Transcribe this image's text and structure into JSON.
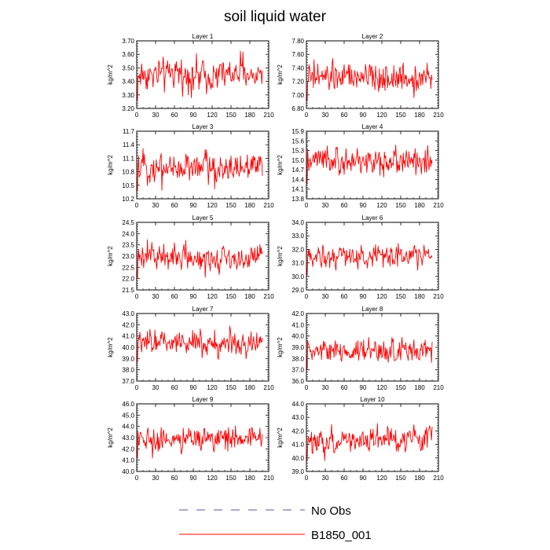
{
  "title": "soil liquid water",
  "legend": [
    {
      "label": "No Obs",
      "color": "#5555aa",
      "style": "dashed"
    },
    {
      "label": "B1850_001",
      "color": "#ff0000",
      "style": "solid"
    }
  ],
  "chart_data": [
    {
      "type": "line",
      "title": "Layer 1",
      "ylabel": "kg/m^2",
      "xlim": [
        0,
        210
      ],
      "ylim": [
        3.2,
        3.7
      ],
      "xticks": [
        "0",
        "30",
        "60",
        "90",
        "120",
        "150",
        "180",
        "210"
      ],
      "yticks": [
        "3.20",
        "3.30",
        "3.40",
        "3.50",
        "3.60",
        "3.70"
      ],
      "series": [
        {
          "name": "B1850_001",
          "n": 200,
          "mean": 3.45,
          "amplitude": 0.1,
          "low_start": true
        }
      ]
    },
    {
      "type": "line",
      "title": "Layer 2",
      "ylabel": "kg/m^2",
      "xlim": [
        0,
        210
      ],
      "ylim": [
        6.8,
        7.8
      ],
      "xticks": [
        "0",
        "30",
        "60",
        "90",
        "120",
        "150",
        "180",
        "210"
      ],
      "yticks": [
        "6.80",
        "7.00",
        "7.20",
        "7.40",
        "7.60",
        "7.80"
      ],
      "series": [
        {
          "name": "B1850_001",
          "n": 200,
          "mean": 7.25,
          "amplitude": 0.18,
          "low_start": true
        }
      ]
    },
    {
      "type": "line",
      "title": "Layer 3",
      "ylabel": "kg/m^2",
      "xlim": [
        0,
        210
      ],
      "ylim": [
        10.2,
        11.7
      ],
      "xticks": [
        "0",
        "30",
        "60",
        "90",
        "120",
        "150",
        "180",
        "210"
      ],
      "yticks": [
        "10.2",
        "10.5",
        "10.8",
        "11.1",
        "11.4",
        "11.7"
      ],
      "series": [
        {
          "name": "B1850_001",
          "n": 200,
          "mean": 10.9,
          "amplitude": 0.28,
          "low_start": true
        }
      ]
    },
    {
      "type": "line",
      "title": "Layer 4",
      "ylabel": "kg/m^2",
      "xlim": [
        0,
        210
      ],
      "ylim": [
        13.8,
        15.9
      ],
      "xticks": [
        "0",
        "30",
        "60",
        "90",
        "120",
        "150",
        "180",
        "210"
      ],
      "yticks": [
        "13.8",
        "14.1",
        "14.4",
        "14.7",
        "15.0",
        "15.3",
        "15.6",
        "15.9"
      ],
      "series": [
        {
          "name": "B1850_001",
          "n": 200,
          "mean": 14.95,
          "amplitude": 0.35,
          "low_start": true
        }
      ]
    },
    {
      "type": "line",
      "title": "Layer 5",
      "ylabel": "kg/m^2",
      "xlim": [
        0,
        210
      ],
      "ylim": [
        21.5,
        24.5
      ],
      "xticks": [
        "0",
        "30",
        "60",
        "90",
        "120",
        "150",
        "180",
        "210"
      ],
      "yticks": [
        "21.5",
        "22.0",
        "22.5",
        "23.0",
        "23.5",
        "24.0",
        "24.5"
      ],
      "series": [
        {
          "name": "B1850_001",
          "n": 200,
          "mean": 22.95,
          "amplitude": 0.5,
          "low_start": true
        }
      ]
    },
    {
      "type": "line",
      "title": "Layer 6",
      "ylabel": "kg/m^2",
      "xlim": [
        0,
        210
      ],
      "ylim": [
        29.0,
        34.0
      ],
      "xticks": [
        "0",
        "30",
        "60",
        "90",
        "120",
        "150",
        "180",
        "210"
      ],
      "yticks": [
        "29.0",
        "30.0",
        "31.0",
        "32.0",
        "33.0",
        "34.0"
      ],
      "series": [
        {
          "name": "B1850_001",
          "n": 200,
          "mean": 31.5,
          "amplitude": 0.75,
          "low_start": true
        }
      ]
    },
    {
      "type": "line",
      "title": "Layer 7",
      "ylabel": "kg/m^2",
      "xlim": [
        0,
        210
      ],
      "ylim": [
        37.0,
        43.0
      ],
      "xticks": [
        "0",
        "30",
        "60",
        "90",
        "120",
        "150",
        "180",
        "210"
      ],
      "yticks": [
        "37.0",
        "38.0",
        "39.0",
        "40.0",
        "41.0",
        "42.0",
        "43.0"
      ],
      "series": [
        {
          "name": "B1850_001",
          "n": 200,
          "mean": 40.4,
          "amplitude": 0.9,
          "low_start": true
        }
      ]
    },
    {
      "type": "line",
      "title": "Layer 8",
      "ylabel": "kg/m^2",
      "xlim": [
        0,
        210
      ],
      "ylim": [
        36.0,
        42.0
      ],
      "xticks": [
        "0",
        "30",
        "60",
        "90",
        "120",
        "150",
        "180",
        "210"
      ],
      "yticks": [
        "36.0",
        "37.0",
        "38.0",
        "39.0",
        "40.0",
        "41.0",
        "42.0"
      ],
      "series": [
        {
          "name": "B1850_001",
          "n": 200,
          "mean": 38.7,
          "amplitude": 0.9,
          "low_start": true
        }
      ]
    },
    {
      "type": "line",
      "title": "Layer 9",
      "ylabel": "kg/m^2",
      "xlim": [
        0,
        210
      ],
      "ylim": [
        40.0,
        46.0
      ],
      "xticks": [
        "0",
        "30",
        "60",
        "90",
        "120",
        "150",
        "180",
        "210"
      ],
      "yticks": [
        "40.0",
        "41.0",
        "42.0",
        "43.0",
        "44.0",
        "45.0",
        "46.0"
      ],
      "series": [
        {
          "name": "B1850_001",
          "n": 200,
          "mean": 42.9,
          "amplitude": 0.9,
          "low_start": true
        }
      ]
    },
    {
      "type": "line",
      "title": "Layer 10",
      "ylabel": "kg/m^2",
      "xlim": [
        0,
        210
      ],
      "ylim": [
        39.0,
        44.0
      ],
      "xticks": [
        "0",
        "30",
        "60",
        "90",
        "120",
        "150",
        "180",
        "210"
      ],
      "yticks": [
        "39.0",
        "40.0",
        "41.0",
        "42.0",
        "43.0",
        "44.0"
      ],
      "series": [
        {
          "name": "B1850_001",
          "n": 200,
          "mean": 41.4,
          "amplitude": 0.85,
          "low_start": true
        }
      ]
    }
  ]
}
